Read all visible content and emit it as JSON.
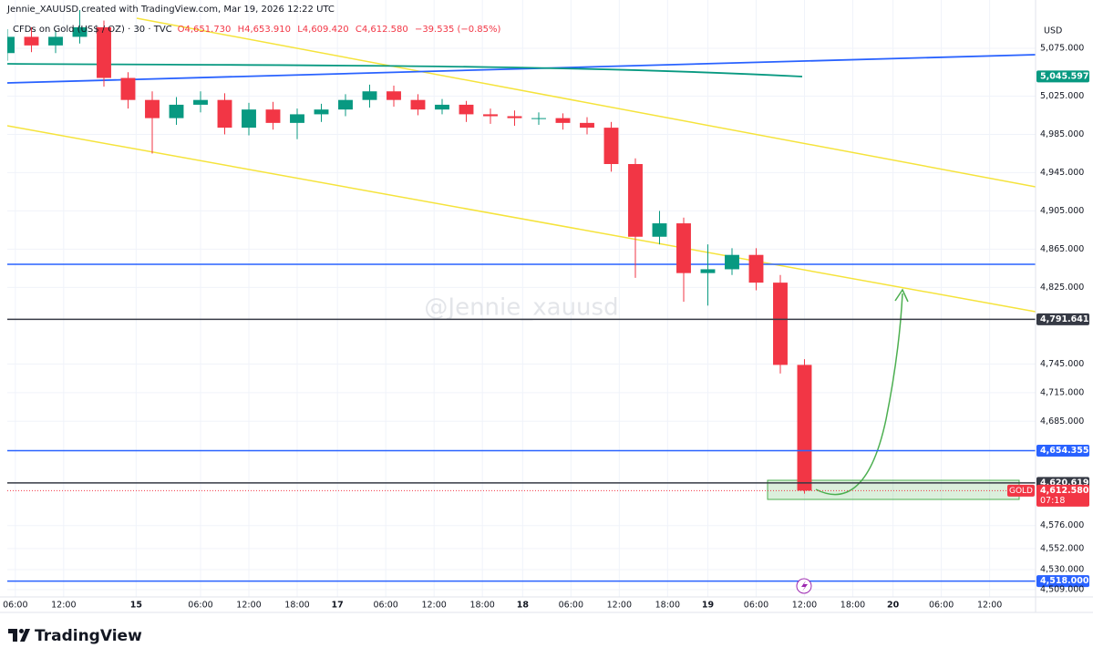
{
  "header": {
    "credit": "Jennie_XAUUSD created with TradingView.com, Mar 19, 2026 12:22 UTC",
    "symbol": "CFDs on Gold (US$ / OZ) · 30 · TVC",
    "open": "O4,651.730",
    "high": "H4,653.910",
    "low": "L4,609.420",
    "close": "C4,612.580",
    "change": "−39.535 (−0.85%)"
  },
  "watermark": "@Jennie_xauusd",
  "footer": "TradingView",
  "chart_data": {
    "type": "candlestick",
    "currency": "USD",
    "up_color": "#089981",
    "down_color": "#f23645",
    "x": [
      0,
      3,
      6,
      9,
      12,
      15,
      18,
      21,
      24,
      27,
      30,
      33,
      36,
      39,
      42,
      45,
      48,
      51,
      54,
      57,
      60,
      63,
      66,
      69,
      72,
      75,
      78,
      81,
      84,
      87,
      90,
      93,
      96,
      99
    ],
    "open": [
      5070,
      5087,
      5078,
      5087,
      5097,
      5044,
      5021,
      5002,
      5016,
      5021,
      4992,
      5011,
      4997,
      5006,
      5011,
      5021,
      5030,
      5021,
      5011,
      5016,
      5006,
      5004,
      5002,
      5002,
      4997,
      4992,
      4954,
      4878,
      4892,
      4840,
      4844,
      4859,
      4830,
      4744
    ],
    "high": [
      5095,
      5097,
      5094,
      5115,
      5104,
      5050,
      5030,
      5024,
      5030,
      5028,
      5018,
      5019,
      5012,
      5017,
      5027,
      5037,
      5036,
      5027,
      5022,
      5020,
      5012,
      5010,
      5008,
      5007,
      5003,
      4998,
      4960,
      4905,
      4898,
      4870,
      4866,
      4866,
      4838,
      4750
    ],
    "low": [
      5062,
      5071,
      5070,
      5080,
      5035,
      5012,
      4965,
      4995,
      5008,
      4985,
      4984,
      4990,
      4980,
      4998,
      5004,
      5013,
      5014,
      5005,
      5006,
      4998,
      4996,
      4994,
      4995,
      4990,
      4985,
      4946,
      4835,
      4870,
      4810,
      4806,
      4838,
      4822,
      4735,
      4609.42
    ],
    "close": [
      5087,
      5078,
      5087,
      5097,
      5044,
      5021,
      5002,
      5016,
      5021,
      4992,
      5011,
      4997,
      5006,
      5011,
      5021,
      5030,
      5021,
      5011,
      5016,
      5006,
      5004,
      5002,
      5002,
      4997,
      4992,
      4954,
      4878,
      4892,
      4840,
      4844,
      4859,
      4830,
      4744,
      4612.58
    ],
    "xlim": [
      0,
      127.7
    ],
    "xticks": [
      {
        "value": 1,
        "label": "06:00"
      },
      {
        "value": 7,
        "label": "12:00"
      },
      {
        "value": 16,
        "label": "15"
      },
      {
        "value": 24,
        "label": "06:00"
      },
      {
        "value": 30,
        "label": "12:00"
      },
      {
        "value": 36,
        "label": "18:00"
      },
      {
        "value": 41,
        "label": "17"
      },
      {
        "value": 47,
        "label": "06:00"
      },
      {
        "value": 53,
        "label": "12:00"
      },
      {
        "value": 59,
        "label": "18:00"
      },
      {
        "value": 64,
        "label": "18"
      },
      {
        "value": 70,
        "label": "06:00"
      },
      {
        "value": 76,
        "label": "12:00"
      },
      {
        "value": 82,
        "label": "18:00"
      },
      {
        "value": 87,
        "label": "19"
      },
      {
        "value": 93,
        "label": "06:00"
      },
      {
        "value": 99,
        "label": "12:00"
      },
      {
        "value": 105,
        "label": "18:00"
      },
      {
        "value": 110,
        "label": "20"
      },
      {
        "value": 116,
        "label": "06:00"
      },
      {
        "value": 122,
        "label": "12:00"
      }
    ],
    "ylim": [
      4501.4,
      5125.5
    ],
    "yticks": [
      {
        "value": 5075,
        "label": "5,075.000"
      },
      {
        "value": 5025,
        "label": "5,025.000"
      },
      {
        "value": 4985,
        "label": "4,985.000"
      },
      {
        "value": 4945,
        "label": "4,945.000"
      },
      {
        "value": 4905,
        "label": "4,905.000"
      },
      {
        "value": 4865,
        "label": "4,865.000"
      },
      {
        "value": 4825,
        "label": "4,825.000"
      },
      {
        "value": 4745,
        "label": "4,745.000"
      },
      {
        "value": 4715,
        "label": "4,715.000"
      },
      {
        "value": 4685,
        "label": "4,685.000"
      },
      {
        "value": 4576,
        "label": "4,576.000"
      },
      {
        "value": 4552,
        "label": "4,552.000"
      },
      {
        "value": 4530,
        "label": "4,530.000"
      },
      {
        "value": 4509,
        "label": "4,509.000"
      }
    ],
    "levels": [
      {
        "value": 5045.597,
        "label": "5,045.597",
        "color": "#089981",
        "line": false
      },
      {
        "value": 4791.641,
        "label": "4,791.641",
        "color": "#363a45",
        "line": true
      },
      {
        "value": 4654.355,
        "label": "4,654.355",
        "color": "#2962ff",
        "line": true
      },
      {
        "value": 4620.619,
        "label": "4,620.619",
        "color": "#363a45",
        "line": true
      },
      {
        "value": 4612.58,
        "label": "4,612.580",
        "color": "#f23645",
        "line": true,
        "dotted": true,
        "tag": "GOLD",
        "countdown": "07:18"
      },
      {
        "value": 4518,
        "label": "4,518.000",
        "color": "#2962ff",
        "line": true
      }
    ]
  }
}
